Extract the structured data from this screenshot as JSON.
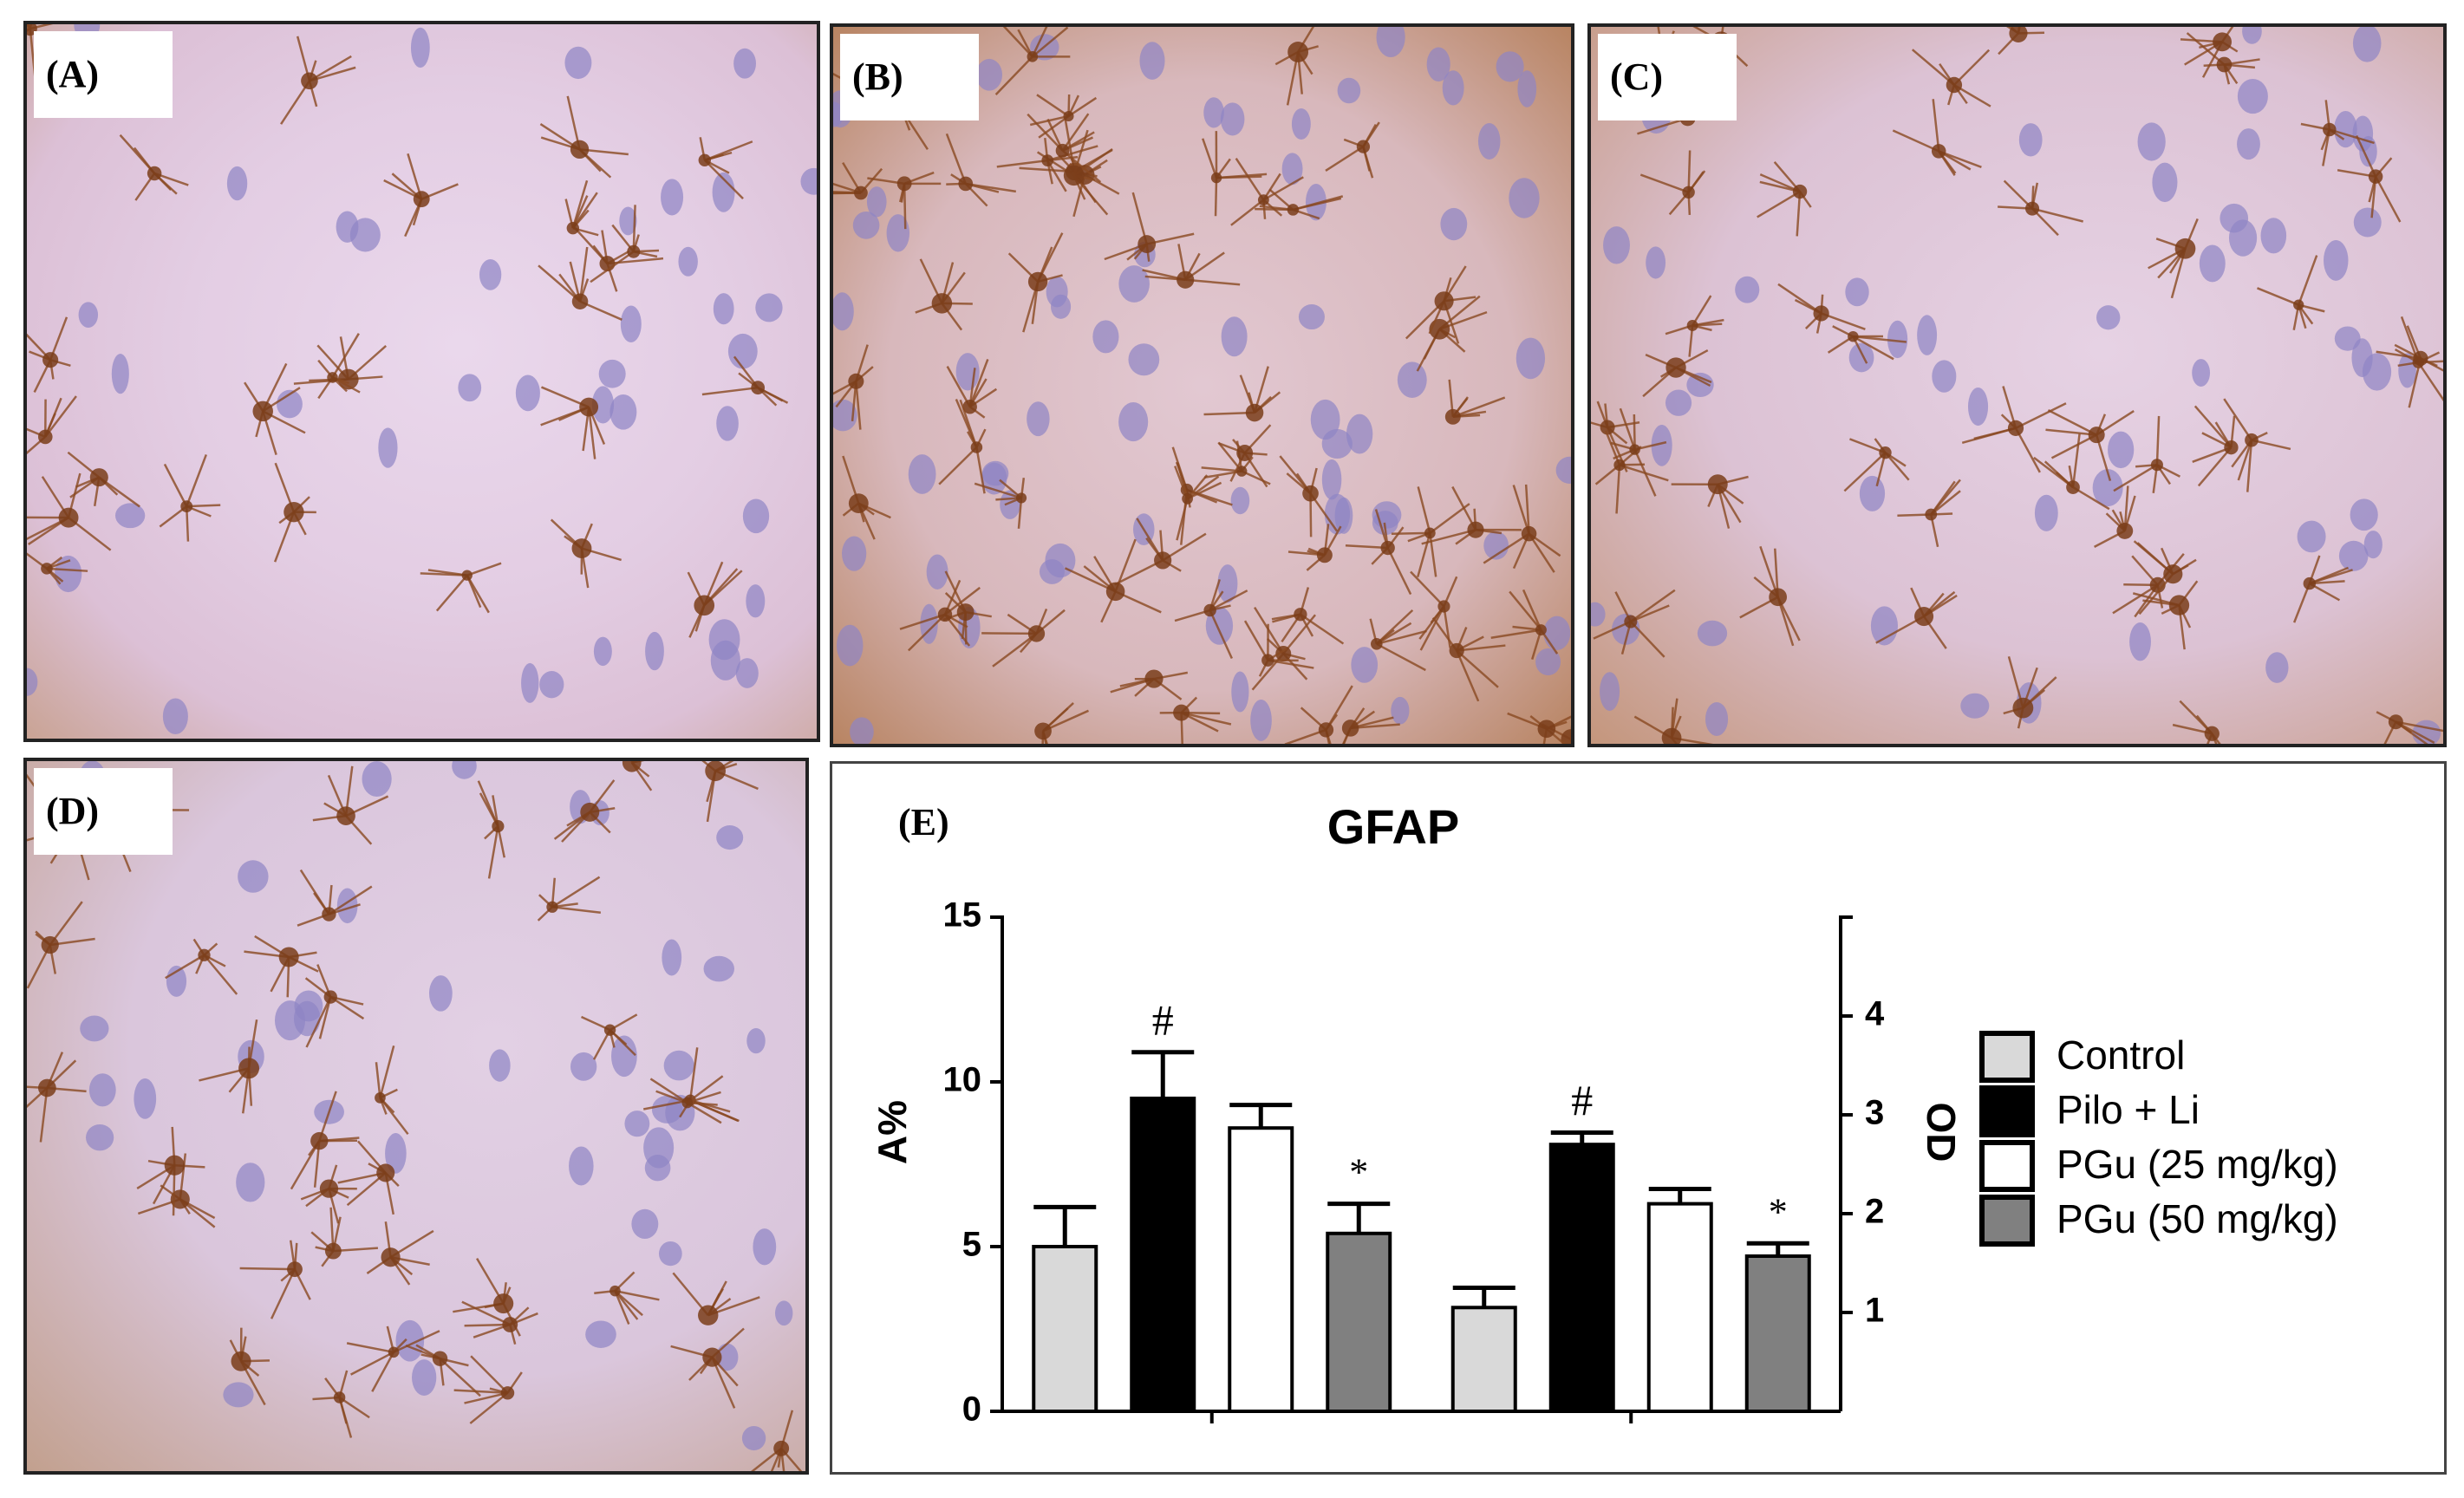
{
  "panels": [
    {
      "label": "(A)"
    },
    {
      "label": "(B)"
    },
    {
      "label": "(C)"
    },
    {
      "label": "(D)"
    }
  ],
  "chart_data": {
    "type": "bar",
    "panel_label": "(E)",
    "title": "GFAP",
    "y_label": "A%",
    "y2_label": "OD",
    "categories": [
      null,
      null
    ],
    "category_axes": [
      "y",
      "y2"
    ],
    "ylim": [
      0,
      15
    ],
    "yticks": [
      0,
      5,
      10,
      15
    ],
    "y2lim": [
      0,
      5
    ],
    "y2ticks": [
      1,
      2,
      3,
      4
    ],
    "series": [
      {
        "name": "Control",
        "color": "#d9d9d9",
        "values": [
          5.0,
          1.05
        ],
        "errors": [
          1.2,
          0.2
        ]
      },
      {
        "name": "Pilo + Li",
        "color": "#000000",
        "values": [
          9.5,
          2.7
        ],
        "errors": [
          1.4,
          0.12
        ],
        "markers": [
          "#",
          "#"
        ]
      },
      {
        "name": "PGu (25 mg/kg)",
        "color": "#ffffff",
        "values": [
          8.6,
          2.1
        ],
        "errors": [
          0.7,
          0.15
        ]
      },
      {
        "name": "PGu (50 mg/kg)",
        "color": "#808080",
        "values": [
          5.4,
          1.57
        ],
        "errors": [
          0.9,
          0.13
        ],
        "markers": [
          "*",
          "*"
        ]
      }
    ]
  }
}
